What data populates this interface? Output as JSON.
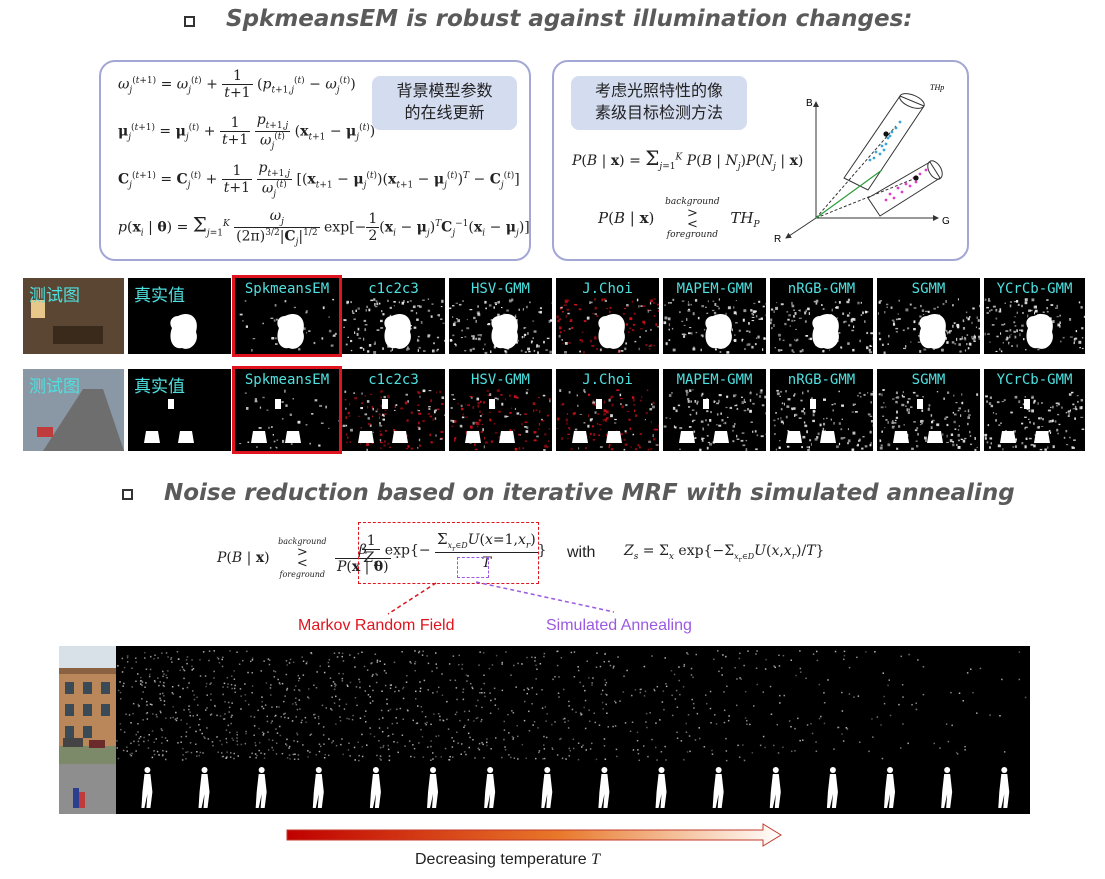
{
  "headings": {
    "top": "SpkmeansEM is robust against illumination changes:",
    "middle": "Noise reduction based on iterative MRF with simulated annealing"
  },
  "left_panel": {
    "label": [
      "背景模型参数",
      "的在线更新"
    ]
  },
  "right_panel": {
    "label": [
      "考虑光照特性的像",
      "素级目标检测方法"
    ],
    "threshold_top": "background",
    "threshold_bottom": "foreground",
    "diagram_labels": {
      "axis_b": "B",
      "axis_g": "G",
      "axis_r": "R",
      "th": "THp"
    }
  },
  "row1": {
    "labels": [
      "测试图",
      "真实值",
      "SpkmeansEM",
      "c1c2c3",
      "HSV-GMM",
      "J.Choi",
      "MAPEM-GMM",
      "nRGB-GMM",
      "SGMM",
      "YCrCb-GMM"
    ]
  },
  "row2": {
    "labels": [
      "测试图",
      "真实值",
      "SpkmeansEM",
      "c1c2c3",
      "HSV-GMM",
      "J.Choi",
      "MAPEM-GMM",
      "nRGB-GMM",
      "SGMM",
      "YCrCb-GMM"
    ]
  },
  "mrf": {
    "label_mrf": "Markov Random Field",
    "label_sa": "Simulated Annealing",
    "with": "with",
    "top_word": "background",
    "bottom_word": "foreground",
    "arrow_caption": "Decreasing temperature",
    "arrow_caption_var": "T"
  },
  "colors": {
    "heading": "#5a5a5a",
    "panel_border": "#a3a7d4",
    "label_bg": "#d4dcf0",
    "cyan_label": "#4fe0e0",
    "highlight": "#e0141e",
    "mrf_red": "#e0141e",
    "sa_purple": "#9b59e0",
    "arrow_start": "#c00000",
    "arrow_end": "#ffffff"
  }
}
